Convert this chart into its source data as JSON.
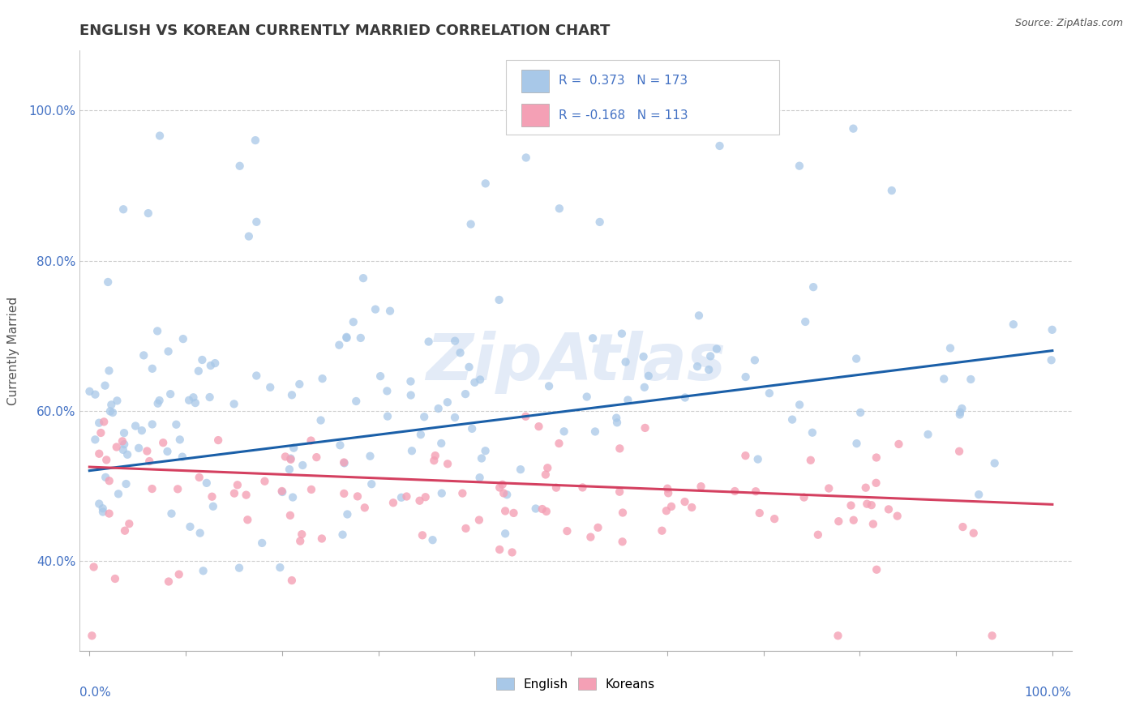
{
  "title": "ENGLISH VS KOREAN CURRENTLY MARRIED CORRELATION CHART",
  "source": "Source: ZipAtlas.com",
  "ylabel": "Currently Married",
  "xlim": [
    0.0,
    1.0
  ],
  "ylim": [
    0.28,
    1.08
  ],
  "yticks": [
    0.4,
    0.6,
    0.8,
    1.0
  ],
  "ytick_labels": [
    "40.0%",
    "60.0%",
    "80.0%",
    "100.0%"
  ],
  "english_color": "#a8c8e8",
  "english_line_color": "#1a5fa8",
  "korean_color": "#f4a0b5",
  "korean_line_color": "#d44060",
  "title_color": "#3a3a3a",
  "title_fontsize": 13,
  "axis_label_color": "#555555",
  "tick_color": "#4472c4",
  "source_color": "#555555",
  "watermark": "ZipAtlas",
  "watermark_color": "#c8d8f0",
  "eng_legend_text": "R =  0.373   N = 173",
  "kor_legend_text": "R = -0.168   N = 113"
}
